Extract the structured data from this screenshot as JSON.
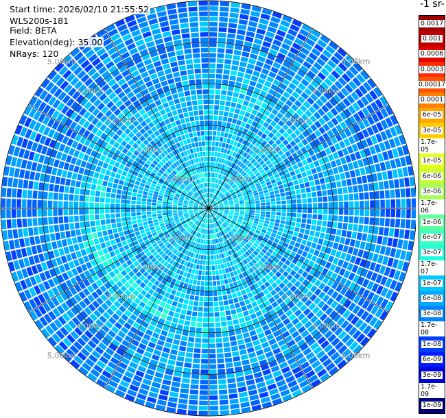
{
  "info": {
    "start_time": "Start time: 2026/02/10 21:55:52",
    "instrument": "WLS200s-181",
    "field": "Field: BETA",
    "elevation": "Elevation(deg): 35.00",
    "nrays": "NRays: 120"
  },
  "colorbar": {
    "unit_label": "-1 sr-",
    "labels": [
      "0.0017",
      "0.001",
      "0.0006",
      "0.0003",
      "0.00017",
      "0.0001",
      "6e-05",
      "3e-05",
      "1.7e-05",
      "1e-05",
      "6e-06",
      "3e-06",
      "1.7e-06",
      "1e-06",
      "6e-07",
      "3e-07",
      "1.7e-07",
      "1e-07",
      "6e-08",
      "3e-08",
      "1.7e-08",
      "1e-08",
      "6e-09",
      "3e-09",
      "1.7e-09",
      "1e-09"
    ],
    "colors": [
      "#9e0000",
      "#c00000",
      "#e00000",
      "#ff2a00",
      "#ff5500",
      "#ff7f00",
      "#ffa600",
      "#ffcc00",
      "#fff200",
      "#e8ff18",
      "#c8ff37",
      "#a6ff59",
      "#84ff7a",
      "#62ff9b",
      "#3fffbd",
      "#1cffde",
      "#00e8ff",
      "#00c8ff",
      "#00a6ff",
      "#0084ff",
      "#0062ff",
      "#003fff",
      "#001cff",
      "#0000e0",
      "#0000b0",
      "#000080"
    ]
  },
  "chart_data": {
    "type": "heatmap",
    "title": "",
    "field": "BETA",
    "elevation_deg": 35.0,
    "n_rays": 120,
    "range_unit": "km",
    "max_range_km": 5.0,
    "range_ring_labels": [
      "1.00km",
      "2.00km",
      "3.00km",
      "4.00km",
      "5.00km"
    ],
    "rings_km": [
      1.0,
      2.0,
      3.0,
      4.0,
      5.0
    ],
    "scale": "log",
    "value_range": [
      1e-09,
      0.0017
    ],
    "typical_value_inner": 1.7e-07,
    "typical_value_outer": 3e-08,
    "enhanced_arc_value": 6e-07
  }
}
